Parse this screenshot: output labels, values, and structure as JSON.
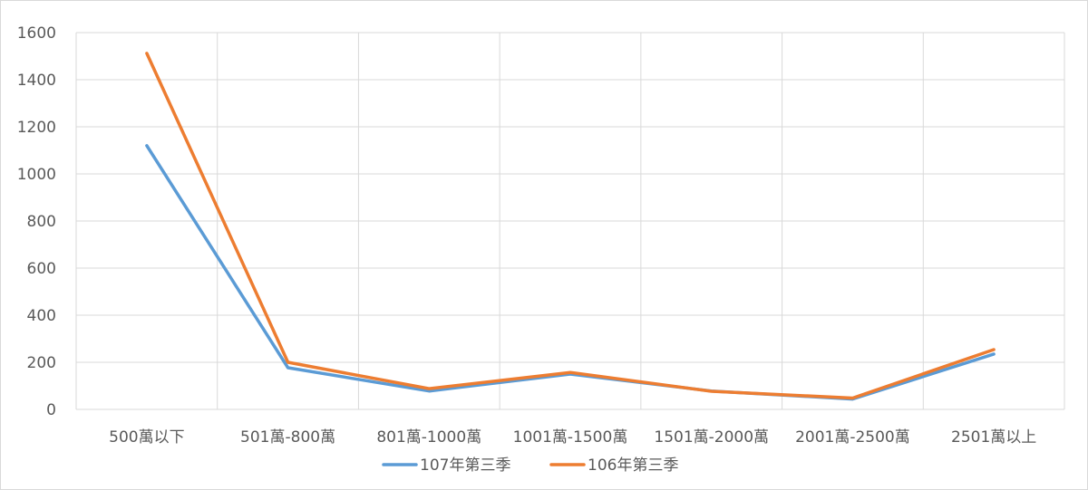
{
  "chart_data": {
    "type": "line",
    "categories": [
      "500萬以下",
      "501萬-800萬",
      "801萬-1000萬",
      "1001萬-1500萬",
      "1501萬-2000萬",
      "2001萬-2500萬",
      "2501萬以上"
    ],
    "series": [
      {
        "name": "107年第三季",
        "color": "#5b9bd5",
        "values": [
          1120,
          177,
          78,
          150,
          78,
          44,
          235
        ]
      },
      {
        "name": "106年第三季",
        "color": "#ed7d31",
        "values": [
          1512,
          200,
          88,
          157,
          77,
          48,
          254
        ]
      }
    ],
    "yticks": [
      0,
      200,
      400,
      600,
      800,
      1000,
      1200,
      1400,
      1600
    ],
    "ylim": [
      0,
      1600
    ],
    "grid": true,
    "legend_position": "bottom",
    "title": "",
    "xlabel": "",
    "ylabel": ""
  }
}
